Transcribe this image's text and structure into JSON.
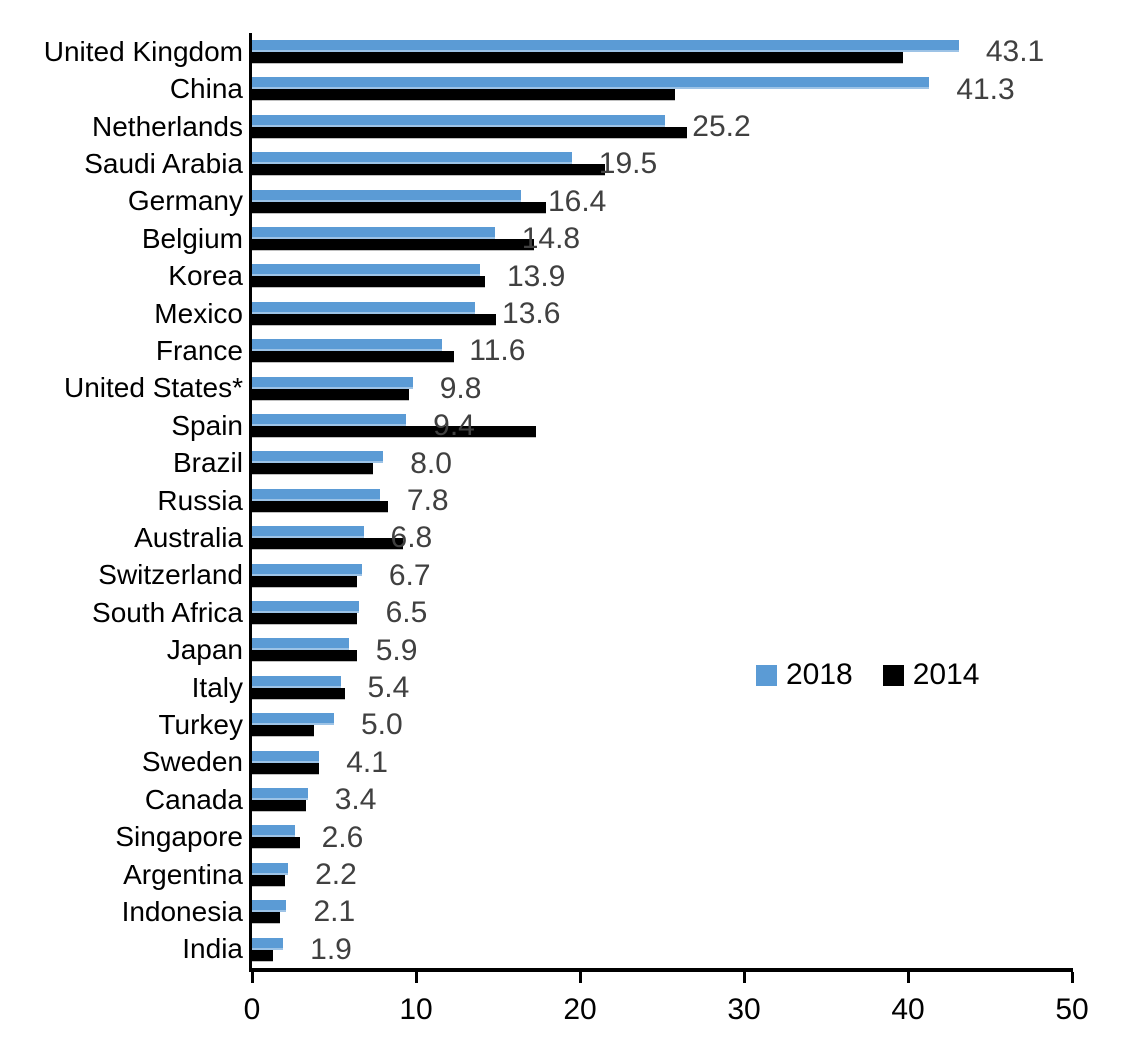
{
  "chart_data": {
    "type": "bar",
    "orientation": "horizontal",
    "title": "",
    "xlabel": "",
    "ylabel": "",
    "xlim": [
      0,
      50
    ],
    "x_ticks": [
      "0",
      "10",
      "20",
      "30",
      "40",
      "50"
    ],
    "grid": false,
    "legend_position": "center-right",
    "categories": [
      "United Kingdom",
      "China",
      "Netherlands",
      "Saudi Arabia",
      "Germany",
      "Belgium",
      "Korea",
      "Mexico",
      "France",
      "United States*",
      "Spain",
      "Brazil",
      "Russia",
      "Australia",
      "Switzerland",
      "South Africa",
      "Japan",
      "Italy",
      "Turkey",
      "Sweden",
      "Canada",
      "Singapore",
      "Argentina",
      "Indonesia",
      "India"
    ],
    "series": [
      {
        "name": "2018",
        "color": "#5B9BD5",
        "data_labels": true,
        "values": [
          43.1,
          41.3,
          25.2,
          19.5,
          16.4,
          14.8,
          13.9,
          13.6,
          11.6,
          9.8,
          9.4,
          8.0,
          7.8,
          6.8,
          6.7,
          6.5,
          5.9,
          5.4,
          5.0,
          4.1,
          3.4,
          2.6,
          2.2,
          2.1,
          1.9
        ],
        "labels": [
          "43.1",
          "41.3",
          "25.2",
          "19.5",
          "16.4",
          "14.8",
          "13.9",
          "13.6",
          "11.6",
          "9.8",
          "9.4",
          "8.0",
          "7.8",
          "6.8",
          "6.7",
          "6.5",
          "5.9",
          "5.4",
          "5.0",
          "4.1",
          "3.4",
          "2.6",
          "2.2",
          "2.1",
          "1.9"
        ]
      },
      {
        "name": "2014",
        "color": "#000000",
        "data_labels": false,
        "values": [
          39.7,
          25.8,
          26.5,
          21.5,
          17.9,
          17.2,
          14.2,
          14.9,
          12.3,
          9.6,
          17.3,
          7.4,
          8.3,
          9.2,
          6.4,
          6.4,
          6.4,
          5.7,
          3.8,
          4.1,
          3.3,
          2.9,
          2.0,
          1.7,
          1.3
        ]
      }
    ]
  },
  "legend": {
    "items": [
      {
        "label": "2018",
        "color": "#5B9BD5"
      },
      {
        "label": "2014",
        "color": "#000000"
      }
    ]
  },
  "colors": {
    "background": "#FFFFFF",
    "axis": "#000000",
    "value_label": "#404040",
    "bar_2018": "#5B9BD5",
    "bar_2014": "#000000"
  }
}
